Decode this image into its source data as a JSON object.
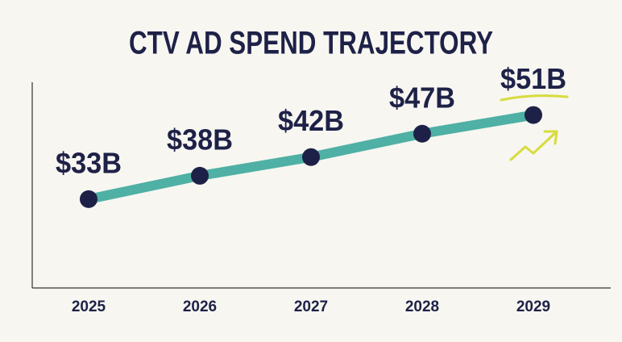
{
  "chart_data": {
    "type": "line",
    "title": "CTV AD SPEND TRAJECTORY",
    "categories": [
      "2025",
      "2026",
      "2027",
      "2028",
      "2029"
    ],
    "series": [
      {
        "color": "#4fb0a5",
        "values": [
          33,
          38,
          42,
          47,
          51
        ],
        "value_labels": [
          "$33B",
          "$38B",
          "$42B",
          "$47B",
          "$51B"
        ]
      }
    ],
    "marker_color": "#1e2147",
    "ylim": [
      14,
      58
    ]
  }
}
